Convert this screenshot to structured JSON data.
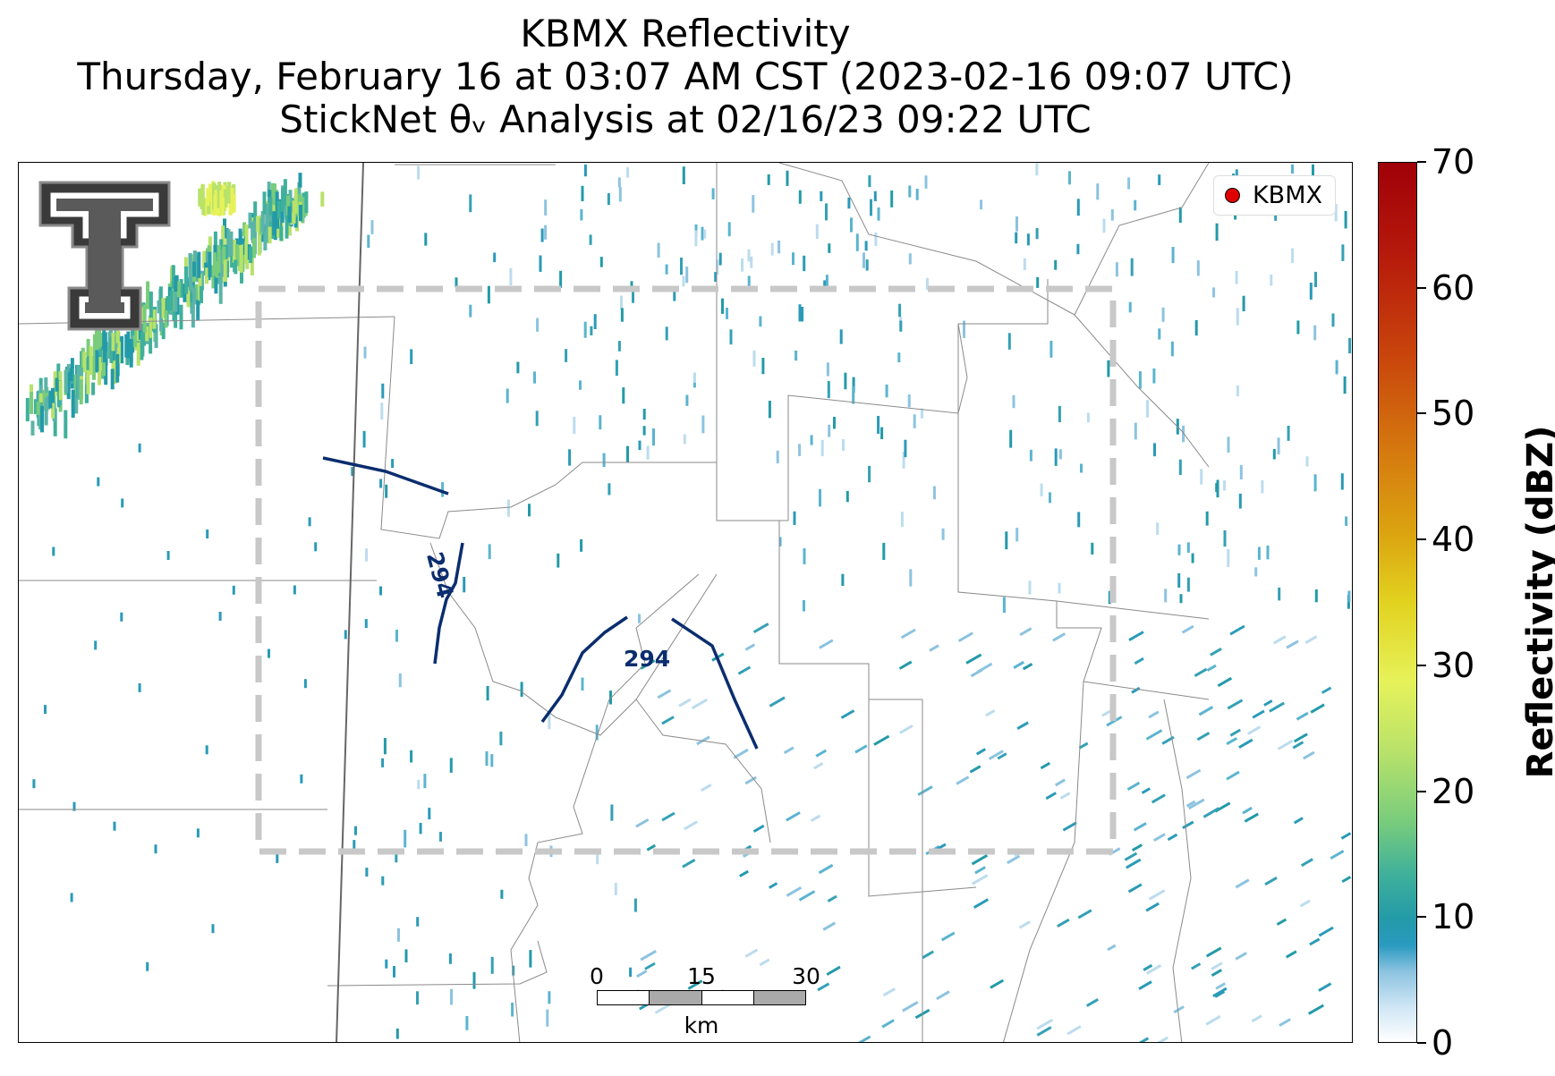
{
  "title": {
    "line1": "KBMX Reflectivity",
    "line2": "Thursday, February 16 at 03:07 AM CST (2023-02-16 09:07 UTC)",
    "line3": "StickNet θᵥ Analysis at 02/16/23 09:22 UTC"
  },
  "legend": {
    "label": "KBMX",
    "marker_color": "#e00000"
  },
  "contours": [
    {
      "label": "294",
      "color": "#0a2d6e"
    },
    {
      "label": "294",
      "color": "#0a2d6e"
    }
  ],
  "scalebar": {
    "ticks": [
      "0",
      "15",
      "30"
    ],
    "unit": "km"
  },
  "colorbar": {
    "label": "Reflectivity (dBZ)",
    "ticks": [
      "0",
      "10",
      "20",
      "30",
      "40",
      "50",
      "60",
      "70"
    ],
    "range": [
      0,
      70
    ]
  },
  "analysis_box": {
    "style": "dashed",
    "color": "#c8c8c8"
  },
  "logo": {
    "name": "texas-tech-double-t-logo"
  }
}
